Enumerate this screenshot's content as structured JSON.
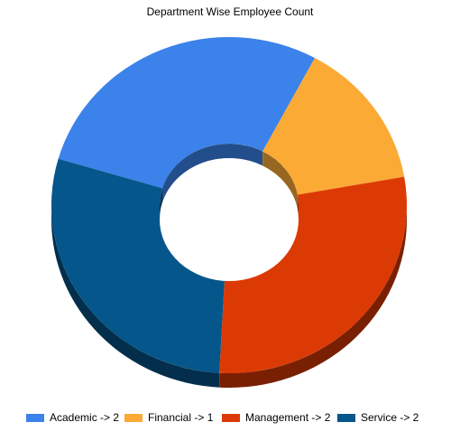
{
  "chart_data": {
    "type": "pie",
    "style": "3d-doughnut",
    "title": "Department Wise Employee Count",
    "legend_position": "bottom",
    "slices": [
      {
        "label": "Academic -> 2",
        "value": 2,
        "color": "#3b82ea"
      },
      {
        "label": "Financial -> 1",
        "value": 1,
        "color": "#fbaa36"
      },
      {
        "label": "Management -> 2",
        "value": 2,
        "color": "#dc3a05"
      },
      {
        "label": "Service -> 2",
        "value": 2,
        "color": "#05568a"
      }
    ]
  }
}
